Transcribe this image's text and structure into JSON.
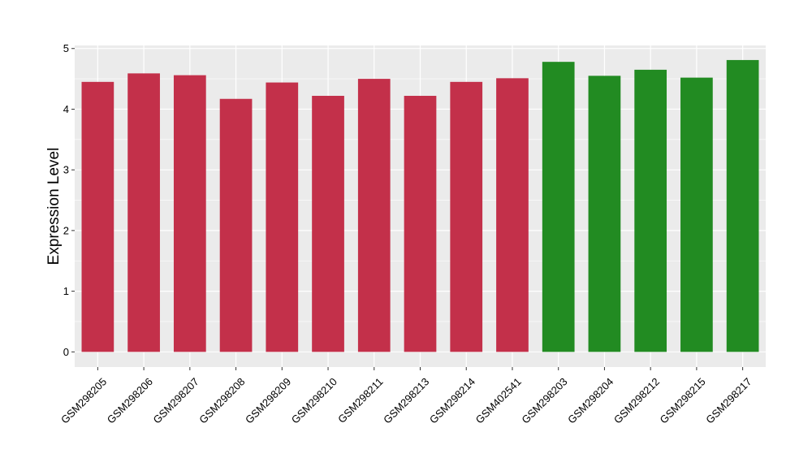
{
  "chart_data": {
    "type": "bar",
    "title": "",
    "xlabel": "",
    "ylabel": "Expression Level",
    "ylim": [
      -0.25,
      5.05
    ],
    "yticks": [
      0,
      1,
      2,
      3,
      4,
      5
    ],
    "ytick_labels": [
      "0",
      "1",
      "2",
      "3",
      "4",
      "5"
    ],
    "grid": true,
    "legend": "none",
    "categories": [
      "GSM298205",
      "GSM298206",
      "GSM298207",
      "GSM298208",
      "GSM298209",
      "GSM298210",
      "GSM298211",
      "GSM298213",
      "GSM298214",
      "GSM402541",
      "GSM298203",
      "GSM298204",
      "GSM298212",
      "GSM298215",
      "GSM298217"
    ],
    "values": [
      4.45,
      4.59,
      4.56,
      4.17,
      4.44,
      4.22,
      4.5,
      4.22,
      4.45,
      4.51,
      4.78,
      4.55,
      4.65,
      4.52,
      4.81
    ],
    "colors": [
      "#c3304a",
      "#c3304a",
      "#c3304a",
      "#c3304a",
      "#c3304a",
      "#c3304a",
      "#c3304a",
      "#c3304a",
      "#c3304a",
      "#c3304a",
      "#228b22",
      "#228b22",
      "#228b22",
      "#228b22",
      "#228b22"
    ],
    "panel_color": "#ebebeb",
    "grid_color": "#ffffff"
  }
}
